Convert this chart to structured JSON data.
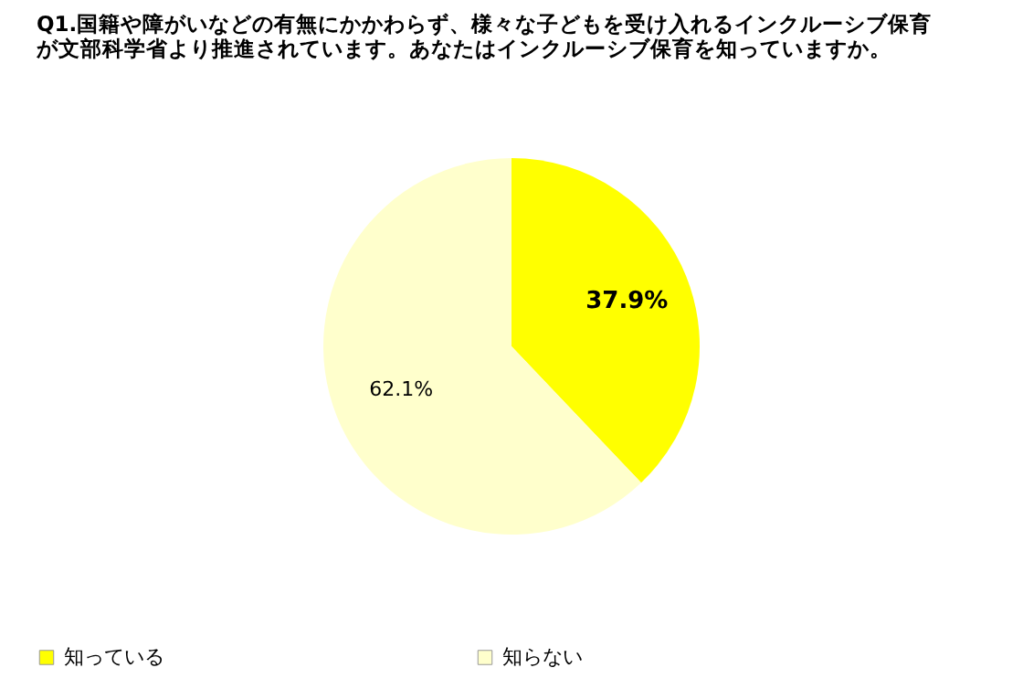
{
  "chart_data": {
    "type": "pie",
    "title": "Q1.国籍や障がいなどの有無にかかわらず、様々な子どもを受け入れるインクルーシブ保育が文部科学省より推進されています。あなたはインクルーシブ保育を知っていますか。",
    "categories": [
      "知っている",
      "知らない"
    ],
    "values": [
      37.9,
      62.1
    ],
    "value_labels": [
      "37.9%",
      "62.1%"
    ],
    "colors": [
      "#ffff00",
      "#ffffcc"
    ],
    "data_labels": true,
    "legend": "bottom"
  }
}
